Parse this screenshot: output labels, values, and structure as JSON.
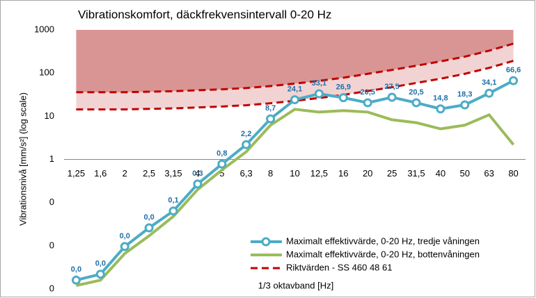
{
  "chart_data": {
    "type": "line",
    "title": "Vibrationskomfort, däckfrekvensintervall 0-20 Hz",
    "x_label": "1/3 oktavband [Hz]",
    "y_label": "Vibrationsnivå [mm/s²] (log scale)",
    "y_scale": "log",
    "ylim": [
      0.001,
      1000
    ],
    "yticks": [
      {
        "value": 0.001,
        "label": "0"
      },
      {
        "value": 0.01,
        "label": "0"
      },
      {
        "value": 0.1,
        "label": "0"
      },
      1,
      10,
      100,
      1000
    ],
    "x_axis_crosses": 1,
    "legend": "lower right",
    "categories": [
      "1,25",
      "1,6",
      "2",
      "2,5",
      "3,15",
      "4",
      "5",
      "6,3",
      "8",
      "10",
      "12,5",
      "16",
      "20",
      "25",
      "31,5",
      "40",
      "50",
      "63",
      "80"
    ],
    "series": [
      {
        "name": "Riktvärden - SS 460 48 61",
        "color": "#c00000",
        "dash": true,
        "fill": "#f2d3d3",
        "values": [
          14.4,
          14.4,
          14.4,
          14.8,
          15.2,
          16,
          16.8,
          18,
          20,
          22.8,
          26.4,
          31.2,
          38.4,
          47,
          59,
          74,
          96,
          132,
          192
        ]
      },
      {
        "color": "#c00000",
        "dash": true,
        "fill": "#d99594",
        "values": [
          36,
          36,
          36,
          37,
          38,
          40,
          42,
          45,
          50,
          57,
          66,
          78,
          96,
          118,
          148,
          186,
          240,
          330,
          480
        ]
      },
      {
        "name": "Maximalt effektivvärde, 0-20 Hz, bottenvåningen",
        "color": "#9bbb59",
        "values": [
          0.0012,
          0.0016,
          0.0066,
          0.017,
          0.048,
          0.2,
          0.57,
          1.5,
          6.2,
          14.5,
          12.5,
          13.5,
          12.5,
          8.3,
          7.1,
          5.1,
          6.2,
          10.8,
          2.2
        ]
      },
      {
        "name": "Maximalt effektivvärde, 0-20 Hz, tredje våningen",
        "color": "#4bacc6",
        "markers": true,
        "values": [
          0.0016,
          0.0022,
          0.0096,
          0.026,
          0.064,
          0.27,
          0.78,
          2.2,
          8.7,
          24.1,
          33.1,
          26.9,
          20.5,
          27.5,
          20.5,
          14.8,
          18.3,
          34.1,
          66.6
        ],
        "value_labels": [
          "0,0",
          "0,0",
          "0,0",
          "0,0",
          "0,1",
          "0,3",
          "0,8",
          "2,2",
          "8,7",
          "24,1",
          "33,1",
          "26,9",
          "20,5",
          "27,5",
          "20,5",
          "14,8",
          "18,3",
          "34,1",
          "66,6"
        ]
      }
    ]
  }
}
